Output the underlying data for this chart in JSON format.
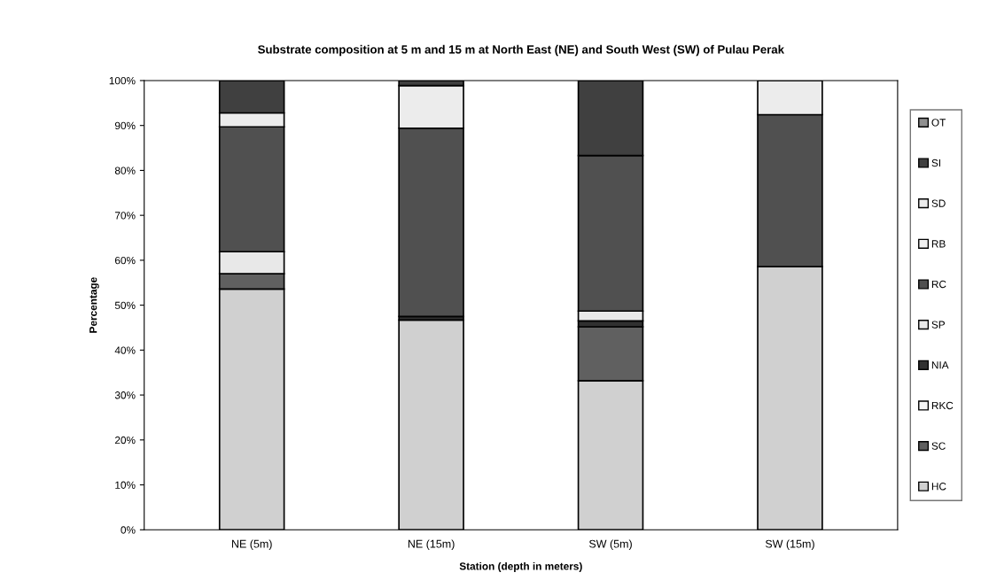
{
  "chart_data": {
    "type": "bar",
    "title": "Substrate composition at 5 m and 15 m at North East (NE) and South West (SW) of Pulau Perak",
    "xlabel": "Station (depth in meters)",
    "ylabel": "Percentage",
    "categories": [
      "NE (5m)",
      "NE (15m)",
      "SW (5m)",
      "SW (15m)"
    ],
    "stacked": true,
    "series": [
      {
        "name": "HC",
        "color": "#d0d0d0",
        "values": [
          53.6,
          46.7,
          33.2,
          58.6
        ]
      },
      {
        "name": "SC",
        "color": "#606060",
        "values": [
          3.4,
          0,
          12.0,
          0
        ]
      },
      {
        "name": "RKC",
        "color": "#f5f5f5",
        "values": [
          0,
          0,
          0,
          0
        ]
      },
      {
        "name": "NIA",
        "color": "#303030",
        "values": [
          0,
          0.8,
          1.3,
          0
        ]
      },
      {
        "name": "SP",
        "color": "#e8e8e8",
        "values": [
          4.9,
          0,
          2.2,
          0
        ]
      },
      {
        "name": "RC",
        "color": "#505050",
        "values": [
          27.8,
          41.9,
          34.6,
          33.8
        ]
      },
      {
        "name": "RB",
        "color": "#f0f0f0",
        "values": [
          0,
          0,
          0,
          0
        ]
      },
      {
        "name": "SD",
        "color": "#ececec",
        "values": [
          3.1,
          9.5,
          0,
          7.6
        ]
      },
      {
        "name": "SI",
        "color": "#404040",
        "values": [
          7.2,
          1.1,
          16.7,
          0
        ]
      },
      {
        "name": "OT",
        "color": "#909090",
        "values": [
          0,
          0,
          0,
          0
        ]
      }
    ],
    "ylim": [
      0,
      100
    ],
    "yticks": [
      {
        "value": 0,
        "label": "0%"
      },
      {
        "value": 10,
        "label": "10%"
      },
      {
        "value": 20,
        "label": "20%"
      },
      {
        "value": 30,
        "label": "30%"
      },
      {
        "value": 40,
        "label": "40%"
      },
      {
        "value": 50,
        "label": "50%"
      },
      {
        "value": 60,
        "label": "60%"
      },
      {
        "value": 70,
        "label": "70%"
      },
      {
        "value": 80,
        "label": "80%"
      },
      {
        "value": 90,
        "label": "90%"
      },
      {
        "value": 100,
        "label": "100%"
      }
    ],
    "grid": false,
    "legend": "right"
  }
}
